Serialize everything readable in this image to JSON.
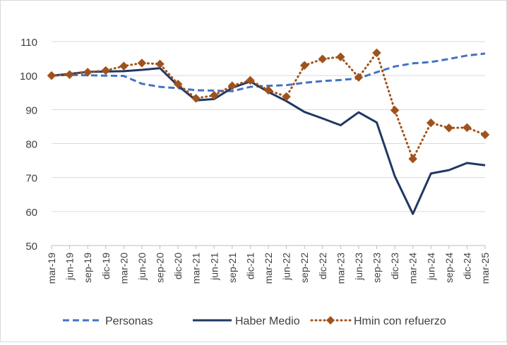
{
  "chart_data": {
    "type": "line",
    "title": "",
    "xlabel": "",
    "ylabel": "",
    "ylim": [
      50,
      110
    ],
    "yticks": [
      "50",
      "60",
      "70",
      "80",
      "90",
      "100",
      "110"
    ],
    "categories": [
      "mar-19",
      "jun-19",
      "sep-19",
      "dic-19",
      "mar-20",
      "jun-20",
      "sep-20",
      "dic-20",
      "mar-21",
      "jun-21",
      "sep-21",
      "dic-21",
      "mar-22",
      "jun-22",
      "sep-22",
      "dic-22",
      "mar-23",
      "jun-23",
      "sep-23",
      "dic-23",
      "mar-24",
      "jun-24",
      "sep-24",
      "dic-24",
      "mar-25"
    ],
    "grid": true,
    "legend_position": "bottom",
    "series": [
      {
        "name": "Personas",
        "style": "dashed",
        "color": "#4472c4",
        "values": [
          100,
          100.2,
          100.1,
          100,
          99.9,
          97.6,
          96.7,
          96.3,
          95.7,
          95.6,
          95.4,
          96.7,
          97.0,
          97.2,
          97.9,
          98.4,
          98.7,
          99.2,
          101.0,
          102.7,
          103.6,
          104.0,
          104.9,
          105.9,
          106.5
        ]
      },
      {
        "name": "Haber Medio",
        "style": "solid",
        "color": "#203864",
        "values": [
          100,
          100.5,
          101.1,
          101.2,
          101.3,
          101.7,
          102.2,
          97.0,
          92.7,
          93.1,
          96.4,
          98.3,
          95.2,
          92.5,
          89.3,
          87.4,
          85.4,
          89.2,
          86.2,
          70.4,
          59.3,
          71.2,
          72.2,
          74.3,
          73.6
        ]
      },
      {
        "name": "Hmin con refuerzo",
        "style": "dotted",
        "color": "#a0521d",
        "marker": "diamond",
        "values": [
          100,
          100.3,
          101.0,
          101.5,
          102.8,
          103.7,
          103.4,
          97.5,
          93.3,
          94.2,
          97.0,
          98.6,
          95.7,
          93.8,
          103.0,
          104.9,
          105.5,
          99.5,
          106.7,
          89.8,
          75.5,
          86.1,
          84.6,
          84.7,
          82.6
        ]
      }
    ]
  }
}
